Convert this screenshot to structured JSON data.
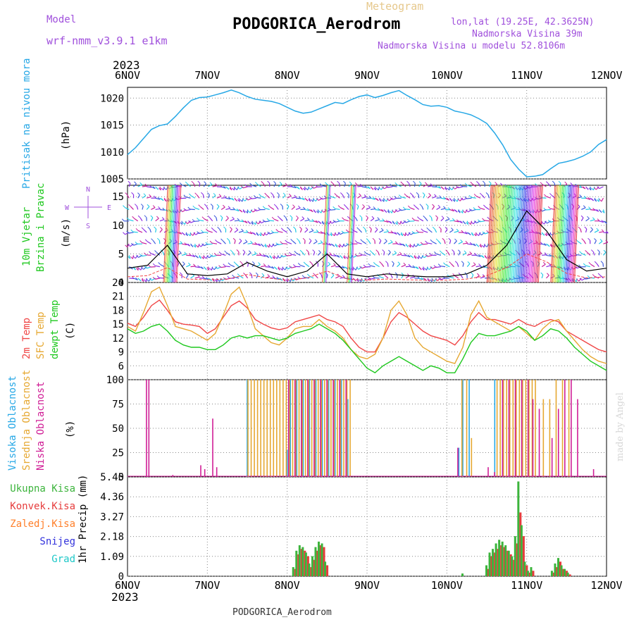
{
  "header": {
    "model_label": "Model",
    "model_name": "wrf-nmm_v3.9.1 e1km",
    "meteogram_label": "Meteogram",
    "station_title": "PODGORICA_Aerodrom",
    "coords": "lon,lat (19.25E, 42.3625N)",
    "altitude": "Nadmorska Visina 39m",
    "model_altitude": "Nadmorska Visina u modelu 52.8106m",
    "year_top": "2023",
    "year_bottom": "2023",
    "footer_station": "PODGORICA_Aerodrom",
    "watermark": "made by Angel"
  },
  "colors": {
    "pressure": "#27a8e6",
    "temp2m": "#f04646",
    "sfc": "#e6a832",
    "dewpt": "#1ec81e",
    "wind_label": "#1ec81e",
    "label_purple": "#a050dc",
    "high_cloud": "#27a8e6",
    "mid_cloud": "#e6a832",
    "low_cloud": "#d01e96",
    "precip_total": "#3cb43c",
    "precip_conv": "#e63c3c",
    "precip_frz": "#ff7f2a",
    "snow": "#3232dc",
    "hail": "#1ec8c8"
  },
  "chart_data": [
    {
      "type": "line",
      "panel": "pressure",
      "ylabel": "(hPa)",
      "side_label": "Pritisak na nivou mora",
      "ylim": [
        1005,
        1022
      ],
      "yticks": [
        "1005",
        "1010",
        "1015",
        "1020"
      ],
      "x_days": [
        0,
        0.1,
        0.2,
        0.3,
        0.4,
        0.5,
        0.6,
        0.7,
        0.8,
        0.9,
        1.0,
        1.1,
        1.2,
        1.3,
        1.4,
        1.5,
        1.6,
        1.7,
        1.8,
        1.9,
        2.0,
        2.1,
        2.2,
        2.3,
        2.4,
        2.5,
        2.6,
        2.7,
        2.8,
        2.9,
        3.0,
        3.1,
        3.2,
        3.3,
        3.4,
        3.5,
        3.6,
        3.7,
        3.8,
        3.9,
        4.0,
        4.1,
        4.2,
        4.3,
        4.4,
        4.5,
        4.6,
        4.7,
        4.8,
        4.9,
        5.0,
        5.1,
        5.2,
        5.3,
        5.4,
        5.5,
        5.6,
        5.7,
        5.8,
        5.9,
        6.0
      ],
      "values": [
        1009.5,
        1010.8,
        1012.5,
        1014.2,
        1014.9,
        1015.2,
        1016.6,
        1018.2,
        1019.6,
        1020.1,
        1020.2,
        1020.6,
        1021.0,
        1021.5,
        1021.0,
        1020.3,
        1019.8,
        1019.6,
        1019.4,
        1019.0,
        1018.3,
        1017.6,
        1017.2,
        1017.4,
        1018.0,
        1018.6,
        1019.2,
        1019.0,
        1019.7,
        1020.3,
        1020.6,
        1020.1,
        1020.5,
        1021.0,
        1021.4,
        1020.5,
        1019.7,
        1018.8,
        1018.5,
        1018.6,
        1018.3,
        1017.6,
        1017.3,
        1016.9,
        1016.2,
        1015.3,
        1013.5,
        1011.3,
        1008.6,
        1006.8,
        1005.4,
        1005.5,
        1005.8,
        1006.9,
        1007.9,
        1008.2,
        1008.6,
        1009.2,
        1010.0,
        1011.4,
        1012.3
      ]
    },
    {
      "type": "line",
      "panel": "wind",
      "ylabel": "(m/s)",
      "side_label_1": "10m Vjetar",
      "side_label_2": "Brzina i Pravac",
      "compass": [
        "N",
        "W",
        "E",
        "S"
      ],
      "ylim": [
        0,
        17
      ],
      "yticks": [
        "0",
        "5",
        "10",
        "15"
      ],
      "x_days": [
        0,
        0.25,
        0.5,
        0.75,
        1.0,
        1.25,
        1.5,
        1.75,
        2.0,
        2.25,
        2.5,
        2.75,
        3.0,
        3.25,
        3.5,
        3.75,
        4.0,
        4.25,
        4.5,
        4.75,
        5.0,
        5.25,
        5.5,
        5.75,
        6.0
      ],
      "values": [
        2.5,
        3.0,
        6.5,
        1.5,
        1.2,
        1.5,
        3.5,
        2.0,
        1.0,
        2.0,
        5.0,
        1.5,
        1.0,
        1.5,
        1.2,
        1.0,
        1.0,
        1.5,
        3.0,
        6.5,
        12.5,
        9.0,
        4.0,
        2.0,
        2.5
      ]
    },
    {
      "type": "line",
      "panel": "temperature",
      "ylabel": "(C)",
      "side_labels": [
        "2m Temp",
        "SFC Temp",
        "dewpt Temp"
      ],
      "ylim": [
        3,
        24
      ],
      "yticks": [
        "6",
        "9",
        "12",
        "15",
        "18",
        "21",
        "24"
      ],
      "x_days": [
        0,
        0.1,
        0.2,
        0.3,
        0.4,
        0.5,
        0.6,
        0.7,
        0.8,
        0.9,
        1.0,
        1.1,
        1.2,
        1.3,
        1.4,
        1.5,
        1.6,
        1.7,
        1.8,
        1.9,
        2.0,
        2.1,
        2.2,
        2.3,
        2.4,
        2.5,
        2.6,
        2.7,
        2.8,
        2.9,
        3.0,
        3.1,
        3.2,
        3.3,
        3.4,
        3.5,
        3.6,
        3.7,
        3.8,
        3.9,
        4.0,
        4.1,
        4.2,
        4.3,
        4.4,
        4.5,
        4.6,
        4.7,
        4.8,
        4.9,
        5.0,
        5.1,
        5.2,
        5.3,
        5.4,
        5.5,
        5.6,
        5.7,
        5.8,
        5.9,
        6.0
      ],
      "series": [
        {
          "name": "2m Temp",
          "values": [
            15.2,
            14.5,
            16.5,
            19.0,
            20.2,
            18.0,
            15.5,
            15.0,
            14.8,
            14.5,
            13.0,
            14.0,
            16.5,
            19.0,
            20.0,
            18.5,
            16.0,
            15.0,
            14.2,
            13.8,
            14.2,
            15.5,
            16.0,
            16.5,
            17.0,
            16.0,
            15.5,
            14.5,
            12.0,
            10.0,
            9.0,
            9.0,
            12.0,
            15.5,
            17.5,
            16.5,
            15.0,
            13.5,
            12.5,
            12.0,
            11.5,
            10.5,
            12.5,
            15.5,
            17.5,
            16.0,
            16.0,
            15.5,
            15.0,
            16.0,
            15.0,
            14.5,
            15.5,
            16.0,
            15.5,
            13.5,
            12.5,
            11.5,
            10.5,
            9.5,
            9.0
          ]
        },
        {
          "name": "SFC Temp",
          "values": [
            14.5,
            13.5,
            17.5,
            22.0,
            23.0,
            19.0,
            14.5,
            14.0,
            13.5,
            12.5,
            11.5,
            13.0,
            17.0,
            21.5,
            23.0,
            19.0,
            14.0,
            12.5,
            11.0,
            10.5,
            12.0,
            14.0,
            14.5,
            14.5,
            16.0,
            14.5,
            13.5,
            12.0,
            9.5,
            8.0,
            7.5,
            8.5,
            12.0,
            18.0,
            20.0,
            17.0,
            12.0,
            10.0,
            9.0,
            8.0,
            7.0,
            6.5,
            10.0,
            17.0,
            20.0,
            16.5,
            15.5,
            14.5,
            13.5,
            14.5,
            13.0,
            11.5,
            14.0,
            15.5,
            16.0,
            13.5,
            11.5,
            9.5,
            8.0,
            7.0,
            6.5
          ]
        },
        {
          "name": "dewpt Temp",
          "values": [
            14.0,
            13.0,
            13.5,
            14.5,
            15.0,
            13.5,
            11.5,
            10.5,
            10.0,
            10.0,
            9.5,
            9.5,
            10.5,
            12.0,
            12.5,
            12.0,
            12.5,
            12.5,
            12.0,
            11.5,
            12.0,
            13.0,
            13.5,
            14.0,
            15.0,
            14.0,
            13.0,
            11.5,
            9.5,
            7.5,
            5.5,
            4.5,
            6.0,
            7.0,
            8.0,
            7.0,
            6.0,
            5.0,
            6.0,
            5.5,
            4.5,
            4.5,
            7.5,
            11.0,
            13.0,
            12.5,
            12.5,
            13.0,
            13.5,
            14.5,
            13.5,
            11.5,
            12.5,
            14.0,
            13.5,
            12.0,
            10.0,
            8.5,
            7.0,
            6.0,
            5.0
          ]
        }
      ]
    },
    {
      "type": "bar",
      "panel": "clouds",
      "ylabel": "(%)",
      "side_labels": [
        "Visoka Oblacnost",
        "Srednja Oblacnost",
        "Niska Oblacnost"
      ],
      "ylim": [
        0,
        100
      ],
      "yticks": [
        "0",
        "25",
        "50",
        "75",
        "100"
      ],
      "series": [
        {
          "name": "Visoka Oblacnost",
          "x_days": [
            1.5,
            2.0,
            2.04,
            2.12,
            2.2,
            2.28,
            2.36,
            2.44,
            2.52,
            2.6,
            2.68,
            2.76,
            4.15,
            4.2,
            4.28,
            4.6,
            4.7,
            4.78,
            4.86,
            4.94,
            5.02
          ],
          "values": [
            100,
            28,
            100,
            100,
            100,
            100,
            100,
            100,
            100,
            100,
            100,
            80,
            30,
            100,
            100,
            100,
            100,
            100,
            100,
            100,
            100
          ]
        },
        {
          "name": "Srednja Oblacnost",
          "x_days": [
            1.5,
            1.54,
            1.58,
            1.62,
            1.66,
            1.7,
            1.74,
            1.78,
            1.82,
            1.86,
            1.9,
            1.94,
            1.98,
            2.02,
            2.06,
            2.1,
            2.14,
            2.18,
            2.22,
            2.26,
            2.3,
            2.34,
            2.38,
            2.42,
            2.46,
            2.5,
            2.54,
            2.58,
            2.62,
            2.66,
            2.7,
            2.74,
            2.78,
            4.18,
            4.24,
            4.3,
            4.62,
            4.66,
            4.7,
            4.74,
            4.78,
            4.82,
            4.86,
            4.9,
            4.94,
            4.98,
            5.02,
            5.06,
            5.1,
            5.2,
            5.28,
            5.36,
            5.44,
            5.52
          ],
          "values": [
            100,
            100,
            100,
            100,
            100,
            100,
            100,
            100,
            100,
            100,
            100,
            100,
            100,
            100,
            100,
            100,
            100,
            100,
            100,
            100,
            100,
            100,
            100,
            100,
            100,
            100,
            100,
            100,
            100,
            100,
            100,
            100,
            100,
            100,
            100,
            40,
            100,
            100,
            100,
            100,
            100,
            100,
            100,
            100,
            100,
            100,
            100,
            100,
            100,
            80,
            80,
            100,
            100,
            100
          ]
        },
        {
          "name": "Niska Oblacnost",
          "x_days": [
            0.22,
            0.25,
            0.55,
            0.9,
            0.95,
            1.05,
            1.1,
            2.0,
            2.08,
            2.16,
            2.24,
            2.32,
            2.4,
            2.48,
            2.56,
            2.64,
            2.72,
            4.12,
            4.5,
            4.58,
            4.68,
            4.76,
            4.84,
            4.92,
            5.0,
            5.06,
            5.14,
            5.3,
            5.38,
            5.46,
            5.54,
            5.62,
            5.82
          ],
          "values": [
            100,
            100,
            2,
            12,
            8,
            60,
            10,
            100,
            100,
            100,
            100,
            100,
            100,
            100,
            100,
            100,
            100,
            30,
            10,
            5,
            100,
            100,
            100,
            100,
            100,
            80,
            70,
            40,
            70,
            100,
            100,
            80,
            8
          ]
        }
      ]
    },
    {
      "type": "bar",
      "panel": "precip",
      "ylabel": "1hr Precip (mm)",
      "legend": [
        "Ukupna Kisa",
        "Konvek.Kisa",
        "Zaledj.Kisa",
        "Snijeg",
        "Grad"
      ],
      "ylim": [
        0,
        5.45
      ],
      "yticks": [
        "0",
        "1.09",
        "2.18",
        "3.27",
        "4.36",
        "5.45"
      ],
      "x_days": [
        2.08,
        2.12,
        2.16,
        2.2,
        2.24,
        2.28,
        2.32,
        2.36,
        2.4,
        2.44,
        2.48,
        4.2,
        4.5,
        4.54,
        4.58,
        4.62,
        4.66,
        4.7,
        4.74,
        4.78,
        4.82,
        4.86,
        4.9,
        4.94,
        4.98,
        5.02,
        5.06,
        5.32,
        5.36,
        5.4,
        5.44,
        5.48,
        5.52
      ],
      "series": [
        {
          "name": "Ukupna Kisa",
          "values": [
            0.5,
            1.4,
            1.7,
            1.6,
            1.3,
            0.7,
            1.1,
            1.6,
            1.9,
            1.8,
            0.8,
            0.15,
            0.6,
            1.3,
            1.5,
            1.8,
            2.0,
            1.9,
            1.7,
            1.4,
            1.1,
            2.2,
            5.2,
            2.8,
            0.8,
            0.3,
            0.5,
            0.3,
            0.7,
            1.0,
            0.6,
            0.4,
            0.2
          ]
        },
        {
          "name": "Konvek.Kisa",
          "values": [
            0.4,
            1.2,
            1.5,
            1.4,
            1.1,
            0.5,
            0.9,
            1.4,
            1.7,
            1.6,
            0.6,
            0.0,
            0.4,
            1.1,
            1.3,
            1.5,
            1.7,
            1.6,
            1.4,
            1.2,
            0.9,
            1.8,
            3.5,
            2.2,
            0.6,
            0.2,
            0.3,
            0.2,
            0.5,
            0.8,
            0.4,
            0.3,
            0.1
          ]
        }
      ]
    }
  ],
  "xaxis": {
    "labels": [
      "6NOV",
      "7NOV",
      "8NOV",
      "9NOV",
      "10NOV",
      "11NOV",
      "12NOV"
    ]
  }
}
